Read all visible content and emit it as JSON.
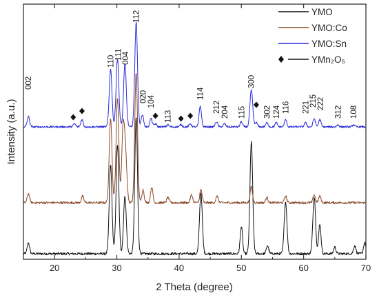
{
  "chart_data": {
    "type": "line",
    "xlabel": "2 Theta (degree)",
    "ylabel": "Intensity (a.u.)",
    "xlim": [
      15,
      70
    ],
    "x_ticks": [
      20,
      30,
      40,
      50,
      60,
      70
    ],
    "y_ticks_labeled": false,
    "grid": false,
    "legend_position": "top-right",
    "legend": [
      {
        "name": "YMO",
        "color": "#111111",
        "marker": "line"
      },
      {
        "name": "YMO:Co",
        "color": "#8b4a2b",
        "marker": "line"
      },
      {
        "name": "YMO:Sn",
        "color": "#2a2ad8",
        "marker": "line"
      },
      {
        "name": "YMn₂O₅",
        "color": "#111111",
        "marker": "diamond"
      }
    ],
    "series": [
      {
        "name": "YMO",
        "color": "#111111",
        "peaks": [
          {
            "x": 15.8,
            "h": 0.08
          },
          {
            "x": 29.0,
            "h": 0.65
          },
          {
            "x": 30.1,
            "h": 0.8
          },
          {
            "x": 31.3,
            "h": 0.42
          },
          {
            "x": 33.1,
            "h": 1.0
          },
          {
            "x": 43.5,
            "h": 0.45
          },
          {
            "x": 50.0,
            "h": 0.2
          },
          {
            "x": 51.6,
            "h": 0.82
          },
          {
            "x": 54.2,
            "h": 0.06
          },
          {
            "x": 57.1,
            "h": 0.38
          },
          {
            "x": 61.7,
            "h": 0.42
          },
          {
            "x": 62.6,
            "h": 0.22
          },
          {
            "x": 65.0,
            "h": 0.05
          },
          {
            "x": 68.2,
            "h": 0.06
          },
          {
            "x": 69.8,
            "h": 0.08
          }
        ]
      },
      {
        "name": "YMO:Co",
        "color": "#8b4a2b",
        "peaks": [
          {
            "x": 15.8,
            "h": 0.07
          },
          {
            "x": 24.5,
            "h": 0.05
          },
          {
            "x": 29.0,
            "h": 0.65
          },
          {
            "x": 30.1,
            "h": 0.8
          },
          {
            "x": 31.0,
            "h": 0.55
          },
          {
            "x": 31.4,
            "h": 0.35
          },
          {
            "x": 33.1,
            "h": 1.0
          },
          {
            "x": 34.2,
            "h": 0.1
          },
          {
            "x": 35.6,
            "h": 0.12
          },
          {
            "x": 38.2,
            "h": 0.04
          },
          {
            "x": 42.0,
            "h": 0.06
          },
          {
            "x": 43.5,
            "h": 0.1
          },
          {
            "x": 46.1,
            "h": 0.05
          },
          {
            "x": 51.6,
            "h": 0.12
          },
          {
            "x": 54.1,
            "h": 0.04
          },
          {
            "x": 57.1,
            "h": 0.05
          },
          {
            "x": 61.7,
            "h": 0.06
          },
          {
            "x": 62.6,
            "h": 0.05
          }
        ]
      },
      {
        "name": "YMO:Sn",
        "color": "#2a2ad8",
        "peaks": [
          {
            "x": 15.8,
            "h": 0.1
          },
          {
            "x": 23.2,
            "h": 0.03
          },
          {
            "x": 24.4,
            "h": 0.07
          },
          {
            "x": 29.0,
            "h": 0.55
          },
          {
            "x": 30.1,
            "h": 0.65
          },
          {
            "x": 31.3,
            "h": 0.6
          },
          {
            "x": 33.1,
            "h": 1.0
          },
          {
            "x": 34.1,
            "h": 0.12
          },
          {
            "x": 35.5,
            "h": 0.08
          },
          {
            "x": 36.2,
            "h": 0.03
          },
          {
            "x": 38.2,
            "h": 0.02
          },
          {
            "x": 40.3,
            "h": 0.02
          },
          {
            "x": 41.8,
            "h": 0.03
          },
          {
            "x": 43.4,
            "h": 0.2
          },
          {
            "x": 46.0,
            "h": 0.05
          },
          {
            "x": 47.3,
            "h": 0.03
          },
          {
            "x": 50.0,
            "h": 0.05
          },
          {
            "x": 51.6,
            "h": 0.35
          },
          {
            "x": 52.4,
            "h": 0.04
          },
          {
            "x": 54.1,
            "h": 0.04
          },
          {
            "x": 55.6,
            "h": 0.04
          },
          {
            "x": 57.1,
            "h": 0.07
          },
          {
            "x": 60.3,
            "h": 0.04
          },
          {
            "x": 61.7,
            "h": 0.08
          },
          {
            "x": 62.6,
            "h": 0.07
          },
          {
            "x": 65.5,
            "h": 0.02
          },
          {
            "x": 68.0,
            "h": 0.02
          }
        ]
      }
    ],
    "peak_labels": [
      {
        "text": "002",
        "x": 15.8
      },
      {
        "text": "110",
        "x": 29.0
      },
      {
        "text": "111",
        "x": 30.2
      },
      {
        "text": "004",
        "x": 31.4
      },
      {
        "text": "112",
        "x": 33.1
      },
      {
        "text": "020",
        "x": 34.2
      },
      {
        "text": "104",
        "x": 35.5
      },
      {
        "text": "113",
        "x": 38.2
      },
      {
        "text": "114",
        "x": 43.4
      },
      {
        "text": "212",
        "x": 46.0
      },
      {
        "text": "204",
        "x": 47.3
      },
      {
        "text": "115",
        "x": 50.0
      },
      {
        "text": "300",
        "x": 51.6
      },
      {
        "text": "302",
        "x": 54.1
      },
      {
        "text": "124",
        "x": 55.6
      },
      {
        "text": "116",
        "x": 57.1
      },
      {
        "text": "221",
        "x": 60.3
      },
      {
        "text": "215",
        "x": 61.5
      },
      {
        "text": "222",
        "x": 62.7
      },
      {
        "text": "312",
        "x": 65.5
      },
      {
        "text": "108",
        "x": 68.0
      }
    ],
    "impurity_markers_x": [
      23.0,
      24.4,
      36.2,
      40.3,
      41.8,
      52.4
    ]
  }
}
